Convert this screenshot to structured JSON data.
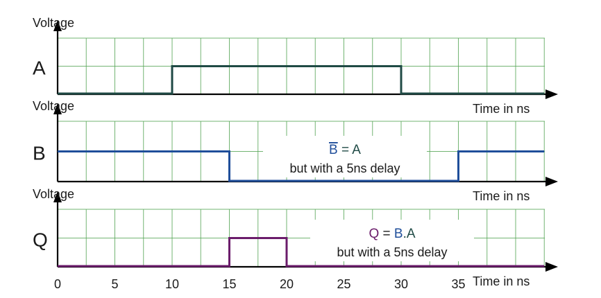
{
  "chart_data": {
    "type": "line",
    "subtype": "timing-diagram",
    "x_ticks": [
      0,
      5,
      10,
      15,
      20,
      25,
      30,
      35
    ],
    "xlim": [
      0,
      42.5
    ],
    "grid": true,
    "series": [
      {
        "name": "A",
        "ylabel": "Voltage",
        "xlabel": "Time in ns",
        "color": "#1f4a45",
        "steps": [
          [
            0,
            0
          ],
          [
            10,
            1
          ],
          [
            30,
            0
          ],
          [
            42.5,
            0
          ]
        ],
        "annotation": []
      },
      {
        "name": "B",
        "ylabel": "Voltage",
        "xlabel": "Time in ns",
        "color": "#1f4e9a",
        "steps": [
          [
            0,
            1
          ],
          [
            15,
            0
          ],
          [
            35,
            1
          ],
          [
            42.5,
            1
          ]
        ],
        "annotation": [
          {
            "text": "B",
            "color": "#1f4e9a",
            "overline": true
          },
          {
            "text": " = A",
            "color": "#1f4a45",
            "overline": false
          }
        ],
        "annotation_sub": "but with a 5ns delay"
      },
      {
        "name": "Q",
        "ylabel": "Voltage",
        "xlabel": "Time in ns",
        "color": "#6b1c6b",
        "steps": [
          [
            0,
            0
          ],
          [
            15,
            1
          ],
          [
            20,
            0
          ],
          [
            42.5,
            0
          ]
        ],
        "annotation": [
          {
            "text": "Q",
            "color": "#6b1c6b",
            "overline": false
          },
          {
            "text": " = ",
            "color": "#1a1a1a",
            "overline": false
          },
          {
            "text": "B",
            "color": "#1f4e9a",
            "overline": false
          },
          {
            "text": ".A",
            "color": "#1f4a45",
            "overline": false
          }
        ],
        "annotation_sub": "but with a 5ns delay"
      }
    ]
  }
}
